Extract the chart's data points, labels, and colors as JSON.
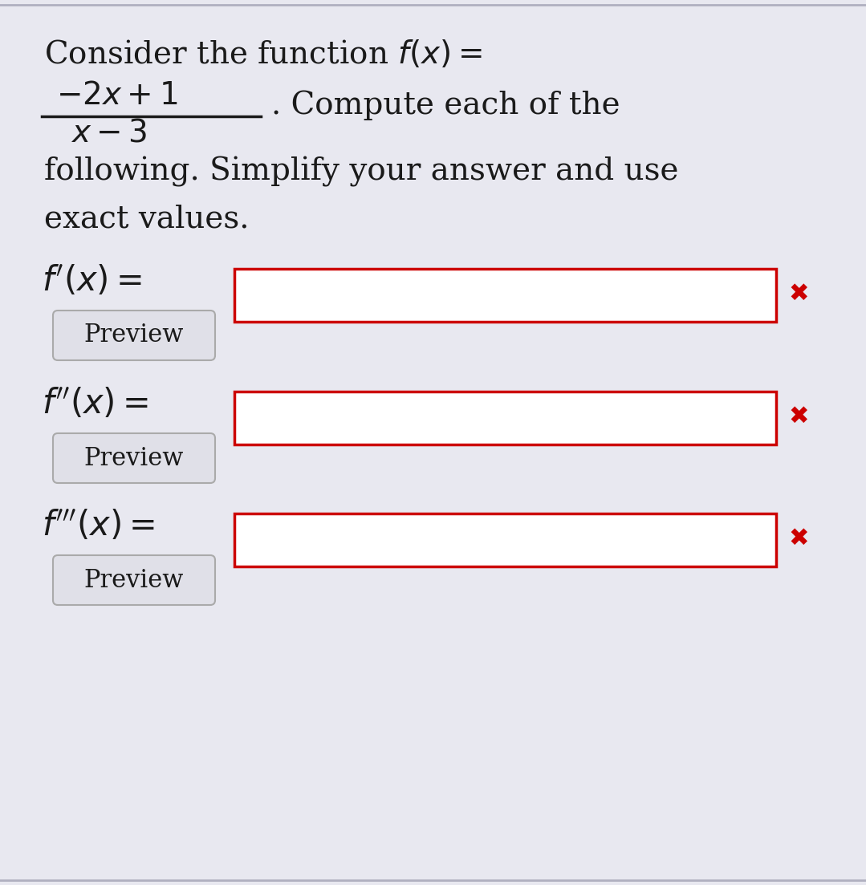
{
  "bg_color": "#e8e8f0",
  "border_color": "#b0b0c0",
  "text_color": "#1a1a1a",
  "red_color": "#cc0000",
  "input_box_color": "#ffffff",
  "input_border_color": "#cc0000",
  "preview_box_color": "#e0e0e8",
  "preview_border_color": "#aaaaaa",
  "line1": "Consider the function $f(x) =$",
  "numerator": "$-2x+1$",
  "denominator": "$x-3$",
  "compute_suffix": ". Compute each of the",
  "line_following": "following. Simplify your answer and use",
  "line_exact": "exact values.",
  "label1": "$f'(x) =$",
  "label2": "$f''(x) =$",
  "label3": "$f'''(x) =$",
  "preview_text": "Preview",
  "cross_mark": "✖",
  "font_size_title": 28,
  "font_size_label": 30,
  "font_size_preview": 22,
  "font_size_cross": 22
}
